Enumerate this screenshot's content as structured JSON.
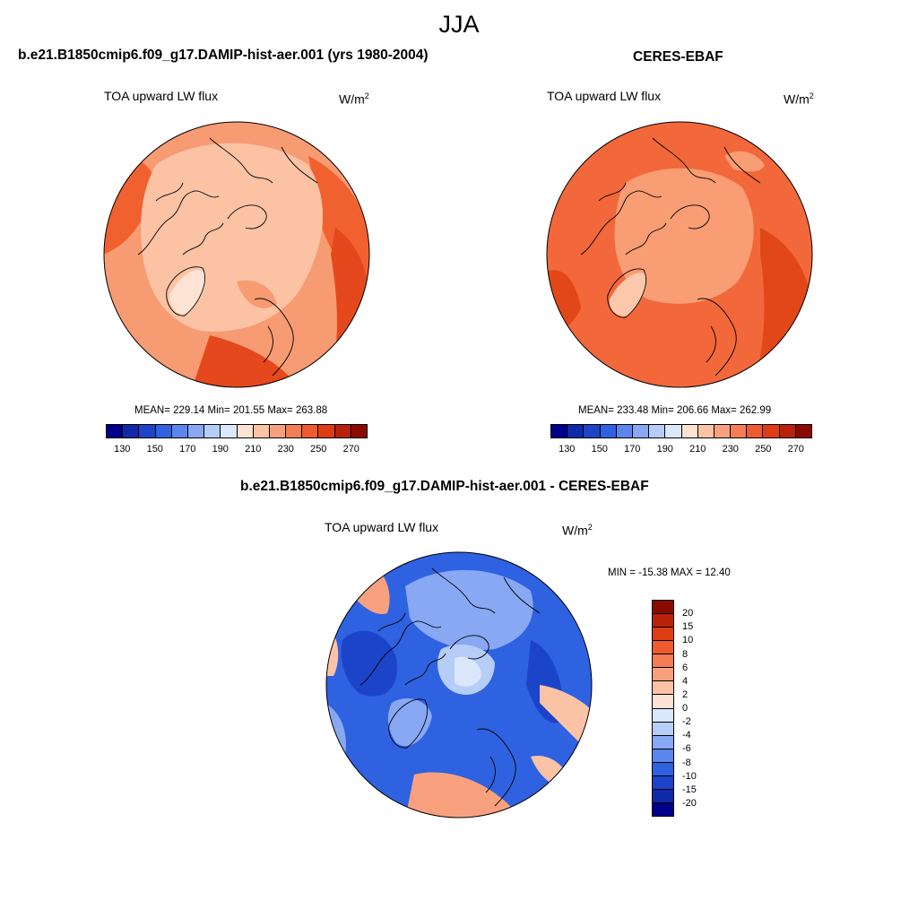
{
  "season": "JJA",
  "panels": {
    "model": {
      "title": "b.e21.B1850cmip6.f09_g17.DAMIP-hist-aer.001 (yrs 1980-2004)",
      "variable": "TOA upward LW flux",
      "units_base": "W/m",
      "units_exp": "2",
      "stats": "MEAN= 229.14  Min= 201.55  Max= 263.88"
    },
    "obs": {
      "title": "CERES-EBAF",
      "variable": "TOA upward LW flux",
      "units_base": "W/m",
      "units_exp": "2",
      "stats": "MEAN= 233.48  Min= 206.66  Max= 262.99"
    },
    "diff": {
      "title": "b.e21.B1850cmip6.f09_g17.DAMIP-hist-aer.001 - CERES-EBAF",
      "variable": "TOA upward LW flux",
      "units_base": "W/m",
      "units_exp": "2",
      "stats": "MIN = -15.38 MAX =  12.40"
    }
  },
  "colorbar_main": {
    "colors": [
      "#00008b",
      "#0f2aa8",
      "#1c44c8",
      "#2f62e0",
      "#5a86ee",
      "#88a8f3",
      "#b6cdf7",
      "#dbe8fb",
      "#fde3d4",
      "#fbc3a6",
      "#f9a17e",
      "#f57d55",
      "#ef5a2f",
      "#de3d14",
      "#b9220a",
      "#8b0a00"
    ],
    "ticks": [
      "130",
      "150",
      "170",
      "190",
      "210",
      "230",
      "250",
      "270"
    ]
  },
  "colorbar_diff": {
    "colors": [
      "#8b0a00",
      "#b9220a",
      "#de3d14",
      "#ef5a2f",
      "#f57d55",
      "#f9a17e",
      "#fbc3a6",
      "#fde3d4",
      "#dbe8fb",
      "#b6cdf7",
      "#88a8f3",
      "#5a86ee",
      "#2f62e0",
      "#1c44c8",
      "#0f2aa8",
      "#00008b"
    ],
    "ticks": [
      "20",
      "15",
      "10",
      "8",
      "6",
      "4",
      "2",
      "0",
      "-2",
      "-4",
      "-6",
      "-8",
      "-10",
      "-15",
      "-20"
    ]
  },
  "map_colors": {
    "model_base": "#f79b72",
    "model_warm": "#f0612f",
    "model_hot": "#e5481c",
    "model_cool": "#fbc2a4",
    "model_cold": "#fde3d4",
    "obs_base": "#f2683a",
    "obs_hot": "#e24719",
    "obs_cool": "#f99d74",
    "obs_cold": "#fcc8ac",
    "diff_base": "#2f62e0",
    "diff_deep": "#1c44c8",
    "diff_light": "#88a8f3",
    "diff_pale": "#b6cdf7",
    "diff_white": "#dbe8fb",
    "diff_warm": "#f9a17e",
    "diff_pink": "#fbc3a6"
  }
}
